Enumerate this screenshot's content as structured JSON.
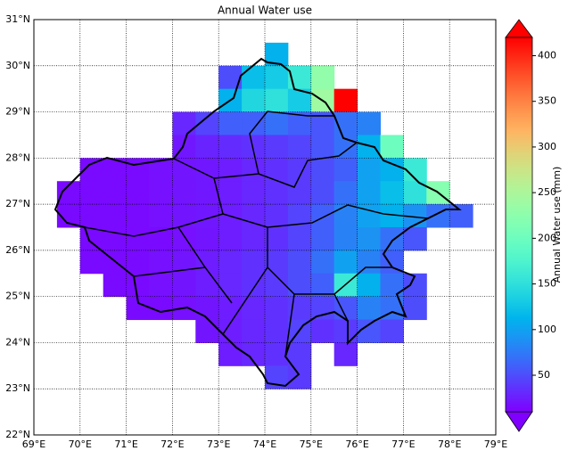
{
  "chart_data": {
    "type": "gridmap",
    "title": "Annual Water use",
    "colorbar_label": "Annual Water use (mm)",
    "cmap": "rainbow",
    "clim": [
      10,
      420
    ],
    "cticks": [
      50,
      100,
      150,
      200,
      250,
      300,
      350,
      400
    ],
    "xlim": [
      69,
      79
    ],
    "ylim": [
      22,
      31
    ],
    "xticks": [
      {
        "value": 69,
        "label": "69°E"
      },
      {
        "value": 70,
        "label": "70°E"
      },
      {
        "value": 71,
        "label": "71°E"
      },
      {
        "value": 72,
        "label": "72°E"
      },
      {
        "value": 73,
        "label": "73°E"
      },
      {
        "value": 74,
        "label": "74°E"
      },
      {
        "value": 75,
        "label": "75°E"
      },
      {
        "value": 76,
        "label": "76°E"
      },
      {
        "value": 77,
        "label": "77°E"
      },
      {
        "value": 78,
        "label": "78°E"
      },
      {
        "value": 79,
        "label": "79°E"
      }
    ],
    "yticks": [
      {
        "value": 22,
        "label": "22°N"
      },
      {
        "value": 23,
        "label": "23°N"
      },
      {
        "value": 24,
        "label": "24°N"
      },
      {
        "value": 25,
        "label": "25°N"
      },
      {
        "value": 26,
        "label": "26°N"
      },
      {
        "value": 27,
        "label": "27°N"
      },
      {
        "value": 28,
        "label": "28°N"
      },
      {
        "value": 29,
        "label": "29°N"
      },
      {
        "value": 30,
        "label": "30°N"
      },
      {
        "value": 31,
        "label": "31°N"
      }
    ],
    "grid": true,
    "grid_rows": [
      {
        "lat": 30.0,
        "lon": 74.0,
        "values": [
          110
        ]
      },
      {
        "lat": 29.5,
        "lon": 73.0,
        "values": [
          50,
          120,
          130,
          160,
          230
        ]
      },
      {
        "lat": 29.0,
        "lon": 73.0,
        "values": [
          110,
          140,
          150,
          130,
          240,
          420
        ]
      },
      {
        "lat": 28.5,
        "lon": 72.0,
        "values": [
          30,
          45,
          60,
          60,
          70,
          60,
          55,
          70,
          80
        ]
      },
      {
        "lat": 28.0,
        "lon": 72.0,
        "values": [
          22,
          28,
          32,
          35,
          40,
          45,
          55,
          70,
          110,
          200
        ]
      },
      {
        "lat": 27.5,
        "lon": 70.0,
        "values": [
          15,
          15,
          15,
          18,
          20,
          22,
          25,
          30,
          35,
          40,
          50,
          60,
          100,
          110,
          160
        ]
      },
      {
        "lat": 27.0,
        "lon": 69.5,
        "values": [
          15,
          15,
          15,
          15,
          18,
          20,
          22,
          25,
          30,
          35,
          40,
          50,
          70,
          100,
          120,
          150,
          220
        ]
      },
      {
        "lat": 26.5,
        "lon": 69.5,
        "values": [
          15,
          15,
          15,
          15,
          18,
          20,
          22,
          25,
          30,
          35,
          45,
          60,
          80,
          100,
          110,
          90,
          70,
          60
        ]
      },
      {
        "lat": 26.0,
        "lon": 70.0,
        "values": [
          15,
          15,
          15,
          15,
          18,
          20,
          25,
          30,
          35,
          45,
          60,
          80,
          90,
          70,
          55
        ]
      },
      {
        "lat": 25.5,
        "lon": 70.0,
        "values": [
          15,
          15,
          15,
          18,
          20,
          25,
          30,
          35,
          40,
          50,
          70,
          100,
          80,
          60
        ]
      },
      {
        "lat": 25.0,
        "lon": 70.5,
        "values": [
          15,
          15,
          18,
          20,
          25,
          30,
          35,
          40,
          50,
          60,
          160,
          110,
          70,
          50
        ]
      },
      {
        "lat": 24.5,
        "lon": 71.0,
        "values": [
          15,
          15,
          18,
          20,
          25,
          30,
          35,
          40,
          45,
          55,
          80,
          70,
          50
        ]
      },
      {
        "lat": 24.0,
        "lon": 72.5,
        "values": [
          20,
          25,
          30,
          35,
          45,
          35,
          40,
          55,
          45
        ]
      },
      {
        "lat": 23.5,
        "lon": 73.0,
        "values": [
          25,
          30,
          35,
          40
        ]
      },
      {
        "lat": 23.5,
        "lon": 75.5,
        "values": [
          30
        ]
      },
      {
        "lat": 23.0,
        "lon": 74.0,
        "values": [
          45,
          40
        ]
      }
    ]
  }
}
